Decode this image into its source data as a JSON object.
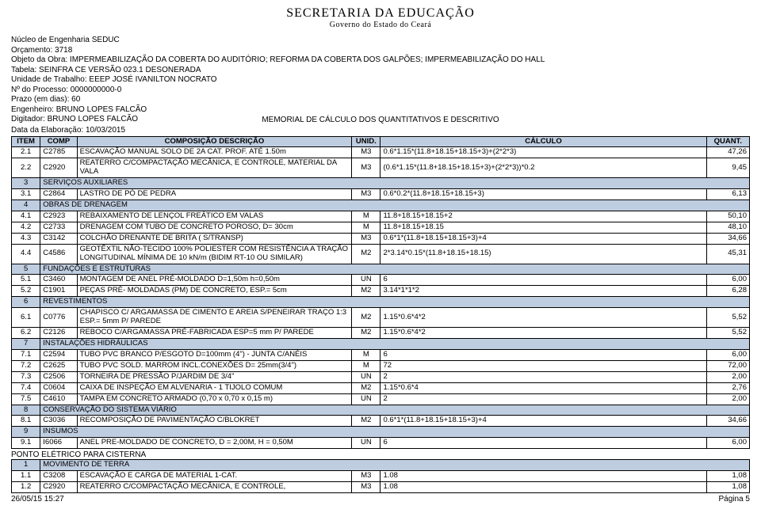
{
  "logo": {
    "line1": "SECRETARIA DA EDUCAÇÃO",
    "line2": "Governo do Estado do Ceará"
  },
  "meta": {
    "nucleo": "Núcleo de Engenharia SEDUC",
    "orcamento": "Orçamento: 3718",
    "objeto": "Objeto da Obra: IMPERMEABILIZAÇÃO DA COBERTA DO AUDITÓRIO; REFORMA DA COBERTA DOS GALPÕES; IMPERMEABILIZAÇÃO DO HALL",
    "tabela": "Tabela: SEINFRA CE VERSÃO 023.1 DESONERADA",
    "unidade": "Unidade de Trabalho: EEEP JOSÉ IVANILTON NOCRATO",
    "processo": "Nº do Processo: 0000000000-0",
    "prazo": "Prazo (em dias): 60",
    "engenheiro": "Engenheiro: BRUNO LOPES FALCÃO",
    "digitador": "Digitador: BRUNO LOPES FALCÃO"
  },
  "memorial": "MEMORIAL DE CÁLCULO DOS QUANTITATIVOS E DESCRITIVO",
  "data_elab": "Data da Elaboração: 10/03/2015",
  "headers": {
    "item": "ITEM",
    "comp": "COMP",
    "desc": "COMPOSIÇÃO DESCRIÇÃO",
    "unid": "UNID.",
    "calc": "CÁLCULO",
    "quant": "QUANT."
  },
  "rows": [
    {
      "t": "d",
      "item": "2.1",
      "comp": "C2785",
      "desc": "ESCAVAÇÃO MANUAL SOLO DE 2A CAT. PROF. ATÉ 1.50m",
      "unid": "M3",
      "calc": "0.6*1.15*(11.8+18.15+18.15+3)+(2*2*3)",
      "quant": "47,26"
    },
    {
      "t": "d",
      "item": "2.2",
      "comp": "C2920",
      "desc": "REATERRO C/COMPACTAÇÃO MECÂNICA, E CONTROLE, MATERIAL DA VALA",
      "unid": "M3",
      "calc": "(0.6*1.15*(11.8+18.15+18.15+3)+(2*2*3))*0.2",
      "quant": "9,45"
    },
    {
      "t": "s",
      "item": "3",
      "desc": "SERVIÇOS AUXILIARES"
    },
    {
      "t": "d",
      "item": "3.1",
      "comp": "C2864",
      "desc": "LASTRO DE PÓ DE PEDRA",
      "unid": "M3",
      "calc": "0.6*0.2*(11.8+18.15+18.15+3)",
      "quant": "6,13"
    },
    {
      "t": "s",
      "item": "4",
      "desc": "OBRAS DE DRENAGEM"
    },
    {
      "t": "d",
      "item": "4.1",
      "comp": "C2923",
      "desc": "REBAIXAMENTO DE LENÇOL FREÁTICO EM VALAS",
      "unid": "M",
      "calc": "11.8+18.15+18.15+2",
      "quant": "50,10"
    },
    {
      "t": "d",
      "item": "4.2",
      "comp": "C2733",
      "desc": "DRENAGEM COM TUBO DE CONCRETO POROSO, D= 30cm",
      "unid": "M",
      "calc": "11.8+18.15+18.15",
      "quant": "48,10"
    },
    {
      "t": "d",
      "item": "4.3",
      "comp": "C3142",
      "desc": "COLCHÃO DRENANTE DE BRITA ( S/TRANSP)",
      "unid": "M3",
      "calc": "0.6*1*(11.8+18.15+18.15+3)+4",
      "quant": "34,66"
    },
    {
      "t": "d",
      "item": "4.4",
      "comp": "C4586",
      "desc": "GEOTÊXTIL NÃO-TECIDO 100% POLIESTER COM RESISTÊNCIA A TRAÇÃO LONGITUDINAL MÍNIMA DE 10 kN/m (BIDIM RT-10 OU SIMILAR)",
      "unid": "M2",
      "calc": "2*3.14*0.15*(11.8+18.15+18.15)",
      "quant": "45,31"
    },
    {
      "t": "s",
      "item": "5",
      "desc": "FUNDAÇÕES E ESTRUTURAS"
    },
    {
      "t": "d",
      "item": "5.1",
      "comp": "C3460",
      "desc": "MONTAGEM DE ANEL PRÉ-MOLDADO D=1,50m h=0,50m",
      "unid": "UN",
      "calc": "6",
      "quant": "6,00"
    },
    {
      "t": "d",
      "item": "5.2",
      "comp": "C1901",
      "desc": "PEÇAS PRÉ- MOLDADAS (PM) DE CONCRETO, ESP.= 5cm",
      "unid": "M2",
      "calc": "3.14*1*1*2",
      "quant": "6,28"
    },
    {
      "t": "s",
      "item": "6",
      "desc": "REVESTIMENTOS"
    },
    {
      "t": "d",
      "item": "6.1",
      "comp": "C0776",
      "desc": "CHAPISCO C/ ARGAMASSA DE CIMENTO E AREIA S/PENEIRAR TRAÇO 1:3 ESP.= 5mm P/ PAREDE",
      "unid": "M2",
      "calc": "1.15*0.6*4*2",
      "quant": "5,52"
    },
    {
      "t": "d",
      "item": "6.2",
      "comp": "C2126",
      "desc": "REBOCO C/ARGAMASSA PRÉ-FABRICADA ESP=5 mm P/ PAREDE",
      "unid": "M2",
      "calc": "1.15*0.6*4*2",
      "quant": "5,52"
    },
    {
      "t": "s",
      "item": "7",
      "desc": "INSTALAÇÕES HIDRÁULICAS"
    },
    {
      "t": "d",
      "item": "7.1",
      "comp": "C2594",
      "desc": "TUBO PVC BRANCO P/ESGOTO D=100mm (4\") - JUNTA C/ANÉIS",
      "unid": "M",
      "calc": "6",
      "quant": "6,00"
    },
    {
      "t": "d",
      "item": "7.2",
      "comp": "C2625",
      "desc": "TUBO PVC SOLD. MARROM INCL.CONEXÕES D= 25mm(3/4\")",
      "unid": "M",
      "calc": "72",
      "quant": "72,00"
    },
    {
      "t": "d",
      "item": "7.3",
      "comp": "C2506",
      "desc": "TORNEIRA DE PRESSÃO P/JARDIM DE 3/4\"",
      "unid": "UN",
      "calc": "2",
      "quant": "2,00"
    },
    {
      "t": "d",
      "item": "7.4",
      "comp": "C0604",
      "desc": "CAIXA DE INSPEÇÃO EM ALVENARIA - 1 TIJOLO COMUM",
      "unid": "M2",
      "calc": "1.15*0.6*4",
      "quant": "2,76"
    },
    {
      "t": "d",
      "item": "7.5",
      "comp": "C4610",
      "desc": "TAMPA EM CONCRETO ARMADO (0,70 x 0,70 x 0,15 m)",
      "unid": "UN",
      "calc": "2",
      "quant": "2,00"
    },
    {
      "t": "s",
      "item": "8",
      "desc": "CONSERVAÇÃO DO SISTEMA VIÁRIO"
    },
    {
      "t": "d",
      "item": "8.1",
      "comp": "C3036",
      "desc": "RECOMPOSIÇÃO DE PAVIMENTAÇÃO C/BLOKRET",
      "unid": "M2",
      "calc": "0.6*1*(11.8+18.15+18.15+3)+4",
      "quant": "34,66"
    },
    {
      "t": "s",
      "item": "9",
      "desc": "INSUMOS"
    },
    {
      "t": "d",
      "item": "9.1",
      "comp": "I6066",
      "desc": "ANEL PRE-MOLDADO DE CONCRETO, D = 2,00M, H = 0,50M",
      "unid": "UN",
      "calc": "6",
      "quant": "6,00"
    }
  ],
  "ponto": "PONTO ELÉTRICO PARA CISTERNA",
  "rows2": [
    {
      "t": "s",
      "item": "1",
      "desc": "MOVIMENTO DE TERRA"
    },
    {
      "t": "d",
      "item": "1.1",
      "comp": "C3208",
      "desc": "ESCAVAÇÃO E CARGA DE MATERIAL 1-CAT.",
      "unid": "M3",
      "calc": "1.08",
      "quant": "1,08"
    },
    {
      "t": "d",
      "item": "1.2",
      "comp": "C2920",
      "desc": "REATERRO C/COMPACTAÇÃO MECÂNICA, E CONTROLE,",
      "unid": "M3",
      "calc": "1.08",
      "quant": "1,08"
    }
  ],
  "footer": {
    "left": "26/05/15 15:27",
    "right": "Página 5"
  },
  "style": {
    "header_bg": "#bfcde0",
    "border_color": "#000000",
    "font_size_table": 9.5,
    "font_size_body": 10
  }
}
